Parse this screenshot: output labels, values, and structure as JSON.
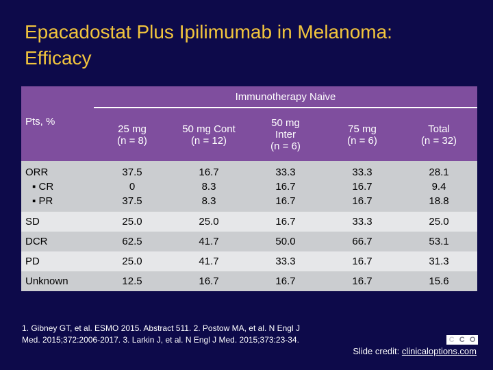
{
  "title": "Epacadostat Plus Ipilimumab in Melanoma: Efficacy",
  "table": {
    "band_label": "Immunotherapy Naive",
    "row_header_label": "Pts, %",
    "columns": [
      {
        "dose": "25 mg",
        "n": "(n = 8)"
      },
      {
        "dose": "50 mg Cont",
        "n": "(n = 12)"
      },
      {
        "dose": "50 mg Inter",
        "n": "(n = 6)"
      },
      {
        "dose": "75 mg",
        "n": "(n = 6)"
      },
      {
        "dose": "Total",
        "n": "(n = 32)"
      }
    ],
    "orr_row": {
      "labels": [
        "ORR",
        "▪ CR",
        "▪ PR"
      ],
      "values": [
        [
          "37.5",
          "0",
          "37.5"
        ],
        [
          "16.7",
          "8.3",
          "8.3"
        ],
        [
          "33.3",
          "16.7",
          "16.7"
        ],
        [
          "33.3",
          "16.7",
          "16.7"
        ],
        [
          "28.1",
          "9.4",
          "18.8"
        ]
      ]
    },
    "rows": [
      {
        "label": "SD",
        "values": [
          "25.0",
          "25.0",
          "16.7",
          "33.3",
          "25.0"
        ]
      },
      {
        "label": "DCR",
        "values": [
          "62.5",
          "41.7",
          "50.0",
          "66.7",
          "53.1"
        ]
      },
      {
        "label": "PD",
        "values": [
          "25.0",
          "41.7",
          "33.3",
          "16.7",
          "31.3"
        ]
      },
      {
        "label": "Unknown",
        "values": [
          "12.5",
          "16.7",
          "16.7",
          "16.7",
          "15.6"
        ]
      }
    ]
  },
  "footnote": "1. Gibney GT, et al. ESMO 2015. Abstract 511. 2. Postow MA, et al. N Engl J Med. 2015;372:2006-2017. 3. Larkin J, et al. N Engl J Med. 2015;373:23-34.",
  "credit": {
    "prefix": "Slide credit: ",
    "link": "clinicaloptions.com"
  },
  "logo_text": [
    "C",
    "C",
    "O"
  ],
  "colors": {
    "background": "#0d0a4a",
    "title": "#f2c53d",
    "header": "#7f4e9e",
    "row_dark": "#cbcdd0",
    "row_light": "#e6e7e9"
  }
}
